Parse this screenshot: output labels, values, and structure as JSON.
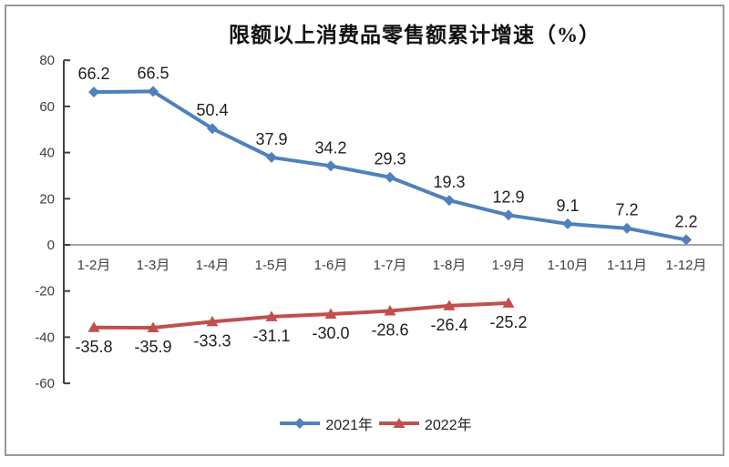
{
  "chart_data": {
    "type": "line",
    "title": "限额以上消费品零售额累计增速（%）",
    "xlabel": "",
    "ylabel": "",
    "categories": [
      "1-2月",
      "1-3月",
      "1-4月",
      "1-5月",
      "1-6月",
      "1-7月",
      "1-8月",
      "1-9月",
      "1-10月",
      "1-11月",
      "1-12月"
    ],
    "series": [
      {
        "name": "2021年",
        "color": "#4F81BD",
        "marker": "diamond",
        "label_position": "above",
        "values": [
          66.2,
          66.5,
          50.4,
          37.9,
          34.2,
          29.3,
          19.3,
          12.9,
          9.1,
          7.2,
          2.2
        ],
        "labels": [
          "66.2",
          "66.5",
          "50.4",
          "37.9",
          "34.2",
          "29.3",
          "19.3",
          "12.9",
          "9.1",
          "7.2",
          "2.2"
        ]
      },
      {
        "name": "2022年",
        "color": "#C0504D",
        "marker": "triangle",
        "label_position": "below",
        "values": [
          -35.8,
          -35.9,
          -33.3,
          -31.1,
          -30.0,
          -28.6,
          -26.4,
          -25.2
        ],
        "labels": [
          "-35.8",
          "-35.9",
          "-33.3",
          "-31.1",
          "-30.0",
          "-28.6",
          "-26.4",
          "-25.2"
        ]
      }
    ],
    "y_axis": {
      "min": -60,
      "max": 80,
      "step": 20,
      "ticks": [
        80,
        60,
        40,
        20,
        0,
        -20,
        -40,
        -60
      ]
    },
    "ylim": [
      -60,
      80
    ],
    "grid": false,
    "legend_position": "bottom",
    "colors": {
      "axis": "#404040",
      "zero_line": "#A6A6A6",
      "data_label_text": "#1F1F1F",
      "tick_label_text": "#3F3F3F",
      "category_label_text": "#3F3F3F",
      "frame_border": "#999999"
    }
  }
}
